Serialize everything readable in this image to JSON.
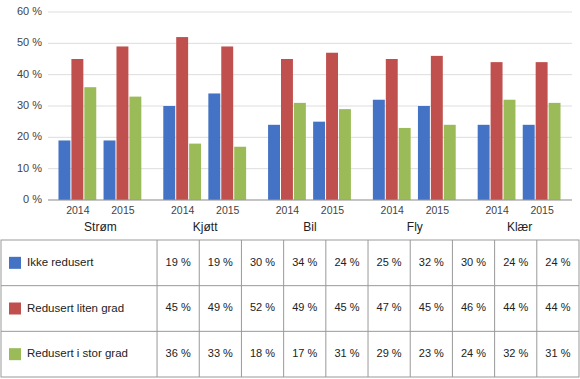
{
  "chart_data": {
    "type": "bar",
    "categories": [
      "Strøm",
      "Kjøtt",
      "Bil",
      "Fly",
      "Klær"
    ],
    "subcategories": [
      "2014",
      "2015"
    ],
    "series": [
      {
        "name": "Ikke redusert",
        "color": "#4472C4",
        "values": [
          [
            19,
            19
          ],
          [
            30,
            34
          ],
          [
            24,
            25
          ],
          [
            32,
            30
          ],
          [
            24,
            24
          ]
        ],
        "value_labels": [
          [
            "19 %",
            "19 %"
          ],
          [
            "30 %",
            "34 %"
          ],
          [
            "24 %",
            "25 %"
          ],
          [
            "32 %",
            "30 %"
          ],
          [
            "24 %",
            "24 %"
          ]
        ]
      },
      {
        "name": "Redusert liten grad",
        "color": "#C0504D",
        "values": [
          [
            45,
            49
          ],
          [
            52,
            49
          ],
          [
            45,
            47
          ],
          [
            45,
            46
          ],
          [
            44,
            44
          ]
        ],
        "value_labels": [
          [
            "45 %",
            "49 %"
          ],
          [
            "52 %",
            "49 %"
          ],
          [
            "45 %",
            "47 %"
          ],
          [
            "45 %",
            "46 %"
          ],
          [
            "44 %",
            "44 %"
          ]
        ]
      },
      {
        "name": "Redusert i stor grad",
        "color": "#9BBB59",
        "values": [
          [
            36,
            33
          ],
          [
            18,
            17
          ],
          [
            31,
            29
          ],
          [
            23,
            24
          ],
          [
            32,
            31
          ]
        ],
        "value_labels": [
          [
            "36 %",
            "33 %"
          ],
          [
            "18 %",
            "17 %"
          ],
          [
            "31 %",
            "29 %"
          ],
          [
            "23 %",
            "24 %"
          ],
          [
            "32 %",
            "31 %"
          ]
        ]
      }
    ],
    "ylim": [
      0,
      60
    ],
    "yticks": [
      {
        "value": 0,
        "label": "0 %"
      },
      {
        "value": 10,
        "label": "10 %"
      },
      {
        "value": 20,
        "label": "20 %"
      },
      {
        "value": 30,
        "label": "30 %"
      },
      {
        "value": 40,
        "label": "40 %"
      },
      {
        "value": 50,
        "label": "50 %"
      },
      {
        "value": 60,
        "label": "60 %"
      }
    ],
    "grid": true
  }
}
